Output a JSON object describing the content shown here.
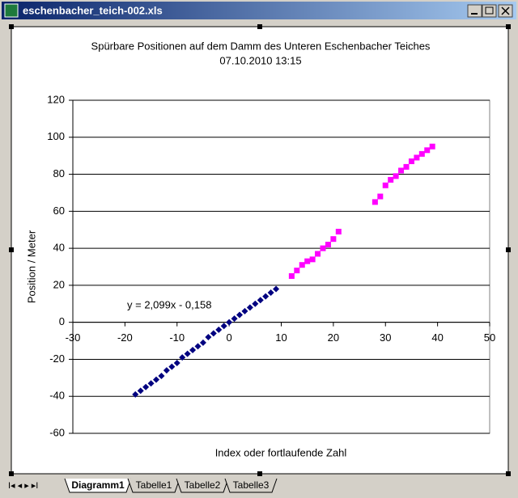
{
  "window": {
    "title": "eschenbacher_teich-002.xls",
    "tabs": [
      "Diagramm1",
      "Tabelle1",
      "Tabelle2",
      "Tabelle3"
    ]
  },
  "chart_data": {
    "type": "scatter",
    "title": "Spürbare Positionen auf dem Damm des Unteren Eschenbacher Teiches",
    "subtitle": "07.10.2010  13:15",
    "x_label": "Index  oder  fortlaufende Zahl",
    "y_label": "Position / Meter",
    "annotation": "y = 2,099x - 0,158",
    "xlim": [
      -30,
      50
    ],
    "xticks": [
      -30,
      -20,
      -10,
      0,
      10,
      20,
      30,
      40,
      50
    ],
    "ylim": [
      -60,
      120
    ],
    "yticks": [
      -60,
      -40,
      -20,
      0,
      20,
      40,
      60,
      80,
      100,
      120
    ],
    "grid": true,
    "series": [
      {
        "color": "#000080",
        "marker": "diamond",
        "x": [
          -18,
          -17,
          -16,
          -15,
          -14,
          -13,
          -12,
          -11,
          -10,
          -9,
          -8,
          -7,
          -6,
          -5,
          -4,
          -3,
          -2,
          -1,
          0,
          1,
          2,
          3,
          4,
          5,
          6,
          7,
          8,
          9
        ],
        "values": [
          -39,
          -37,
          -35,
          -33,
          -31,
          -29,
          -26,
          -24,
          -22,
          -19,
          -17,
          -15,
          -13,
          -11,
          -8,
          -6,
          -4,
          -2,
          0,
          2,
          4,
          6,
          8,
          10,
          12,
          14,
          16,
          18
        ]
      },
      {
        "color": "#ff00ff",
        "marker": "square",
        "x": [
          12,
          13,
          14,
          15,
          16,
          17,
          18,
          19,
          20,
          21,
          28,
          29,
          30,
          31,
          32,
          33,
          34,
          35,
          36,
          37,
          38,
          39
        ],
        "values": [
          25,
          28,
          31,
          33,
          34,
          37,
          40,
          42,
          45,
          49,
          65,
          68,
          74,
          77,
          79,
          82,
          84,
          87,
          89,
          91,
          93,
          95
        ]
      }
    ]
  }
}
